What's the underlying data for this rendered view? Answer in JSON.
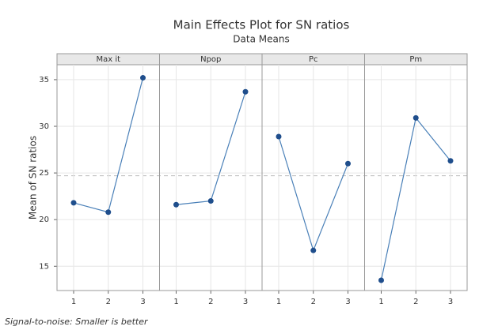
{
  "chart_data": {
    "type": "line",
    "title": "Main Effects Plot for SN ratios",
    "subtitle": "Data Means",
    "ylabel": "Mean of SN ratios",
    "footnote": "Signal-to-noise: Smaller is better",
    "ylim": [
      12.4,
      36.6
    ],
    "yticks": [
      15,
      20,
      25,
      30,
      35
    ],
    "grid": true,
    "reference_line": 24.7,
    "color": "#4a80b8",
    "marker_color": "#1f4e8c",
    "panels": [
      {
        "title": "Max it",
        "categories": [
          "1",
          "2",
          "3"
        ],
        "values": [
          21.8,
          20.8,
          35.2
        ]
      },
      {
        "title": "Npop",
        "categories": [
          "1",
          "2",
          "3"
        ],
        "values": [
          21.6,
          22.0,
          33.7
        ]
      },
      {
        "title": "Pc",
        "categories": [
          "1",
          "2",
          "3"
        ],
        "values": [
          28.9,
          16.7,
          26.0
        ]
      },
      {
        "title": "Pm",
        "categories": [
          "1",
          "2",
          "3"
        ],
        "values": [
          13.5,
          30.9,
          26.3
        ]
      }
    ]
  }
}
